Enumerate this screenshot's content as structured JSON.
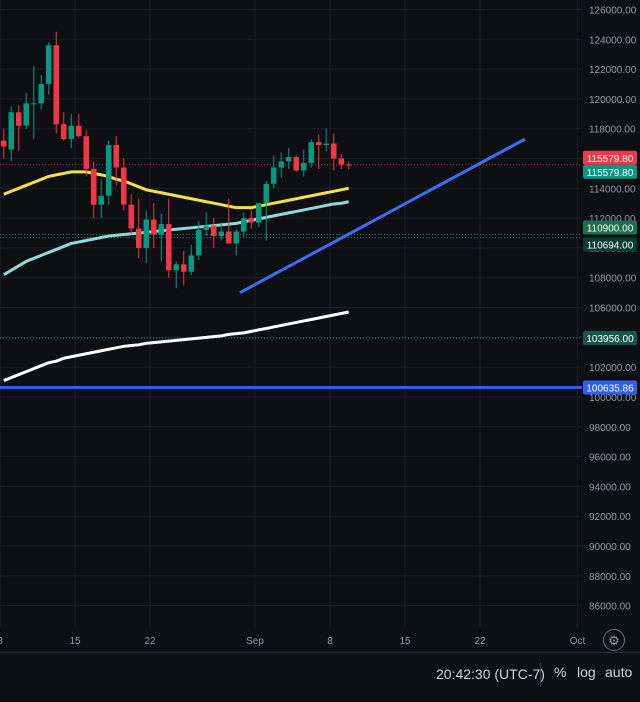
{
  "chart_data": {
    "type": "candlestick",
    "x_tick_labels": [
      "8",
      "15",
      "22",
      "Sep",
      "8",
      "15",
      "22",
      "Oct"
    ],
    "y_tick_labels": [
      "126000.00",
      "124000.00",
      "122000.00",
      "120000.00",
      "118000.00",
      "116000.00",
      "114000.00",
      "112000.00",
      "110000.00",
      "108000.00",
      "106000.00",
      "104000.00",
      "102000.00",
      "100000.00",
      "98000.00",
      "96000.00",
      "94000.00",
      "92000.00",
      "90000.00",
      "88000.00",
      "86000.00"
    ],
    "ylim": [
      84500,
      126500
    ],
    "candles": [
      {
        "o": 117200,
        "h": 118000,
        "l": 116000,
        "c": 116800
      },
      {
        "o": 116600,
        "h": 119500,
        "l": 115800,
        "c": 119100
      },
      {
        "o": 119100,
        "h": 119600,
        "l": 116500,
        "c": 118200
      },
      {
        "o": 118200,
        "h": 120400,
        "l": 118000,
        "c": 119700
      },
      {
        "o": 119700,
        "h": 122200,
        "l": 117300,
        "c": 119700
      },
      {
        "o": 119700,
        "h": 121600,
        "l": 119300,
        "c": 121000
      },
      {
        "o": 121000,
        "h": 123800,
        "l": 120300,
        "c": 123600
      },
      {
        "o": 123600,
        "h": 124500,
        "l": 117700,
        "c": 118300
      },
      {
        "o": 118300,
        "h": 119100,
        "l": 117200,
        "c": 117300
      },
      {
        "o": 117300,
        "h": 119000,
        "l": 116700,
        "c": 118200
      },
      {
        "o": 118200,
        "h": 119000,
        "l": 117400,
        "c": 117500
      },
      {
        "o": 117500,
        "h": 117900,
        "l": 114800,
        "c": 115300
      },
      {
        "o": 115300,
        "h": 115800,
        "l": 112000,
        "c": 112900
      },
      {
        "o": 112900,
        "h": 114600,
        "l": 112000,
        "c": 113500
      },
      {
        "o": 113500,
        "h": 117200,
        "l": 112900,
        "c": 116900
      },
      {
        "o": 116900,
        "h": 117500,
        "l": 114200,
        "c": 115400
      },
      {
        "o": 115400,
        "h": 116000,
        "l": 112500,
        "c": 112900
      },
      {
        "o": 112900,
        "h": 113600,
        "l": 110900,
        "c": 111300
      },
      {
        "o": 111300,
        "h": 113300,
        "l": 109300,
        "c": 110000
      },
      {
        "o": 110000,
        "h": 112500,
        "l": 109000,
        "c": 111900
      },
      {
        "o": 111900,
        "h": 113000,
        "l": 110000,
        "c": 110900
      },
      {
        "o": 110900,
        "h": 112300,
        "l": 109100,
        "c": 111600
      },
      {
        "o": 111600,
        "h": 113300,
        "l": 108000,
        "c": 108500
      },
      {
        "o": 108500,
        "h": 109100,
        "l": 107300,
        "c": 108900
      },
      {
        "o": 108900,
        "h": 109800,
        "l": 107500,
        "c": 108400
      },
      {
        "o": 108400,
        "h": 110200,
        "l": 108200,
        "c": 109500
      },
      {
        "o": 109500,
        "h": 111800,
        "l": 109200,
        "c": 111200
      },
      {
        "o": 111200,
        "h": 112400,
        "l": 110800,
        "c": 111500
      },
      {
        "o": 111500,
        "h": 112000,
        "l": 110000,
        "c": 110800
      },
      {
        "o": 110800,
        "h": 111600,
        "l": 110500,
        "c": 111100
      },
      {
        "o": 111100,
        "h": 113300,
        "l": 110300,
        "c": 110300
      },
      {
        "o": 110300,
        "h": 111300,
        "l": 109500,
        "c": 111100
      },
      {
        "o": 111100,
        "h": 112400,
        "l": 110700,
        "c": 112000
      },
      {
        "o": 112000,
        "h": 112600,
        "l": 111300,
        "c": 111700
      },
      {
        "o": 111700,
        "h": 113000,
        "l": 111400,
        "c": 113000
      },
      {
        "o": 113000,
        "h": 114500,
        "l": 110500,
        "c": 114300
      },
      {
        "o": 114300,
        "h": 116200,
        "l": 114000,
        "c": 115400
      },
      {
        "o": 115400,
        "h": 116400,
        "l": 114700,
        "c": 115800
      },
      {
        "o": 115800,
        "h": 116700,
        "l": 115300,
        "c": 116100
      },
      {
        "o": 116100,
        "h": 116200,
        "l": 115100,
        "c": 115200
      },
      {
        "o": 115200,
        "h": 116600,
        "l": 114800,
        "c": 115700
      },
      {
        "o": 115700,
        "h": 117300,
        "l": 115400,
        "c": 117100
      },
      {
        "o": 117100,
        "h": 117600,
        "l": 115300,
        "c": 116900
      },
      {
        "o": 116900,
        "h": 118000,
        "l": 116500,
        "c": 117000
      },
      {
        "o": 117000,
        "h": 117700,
        "l": 115200,
        "c": 116000
      },
      {
        "o": 116000,
        "h": 116300,
        "l": 115300,
        "c": 115600
      },
      {
        "o": 115600,
        "h": 115800,
        "l": 115300,
        "c": 115580
      }
    ],
    "moving_averages": [
      {
        "color": "#f2e14a",
        "values": [
          113600,
          113800,
          114000,
          114200,
          114400,
          114600,
          114800,
          114900,
          115000,
          115100,
          115100,
          115100,
          115000,
          114900,
          114800,
          114600,
          114500,
          114300,
          114100,
          113900,
          113800,
          113700,
          113600,
          113500,
          113400,
          113300,
          113200,
          113100,
          113000,
          112900,
          112800,
          112700,
          112700,
          112700,
          112800,
          112900,
          113000,
          113100,
          113200,
          113300,
          113400,
          113500,
          113600,
          113700,
          113800,
          113900,
          114000
        ]
      },
      {
        "color": "#8fd9d9",
        "values": [
          108200,
          108500,
          108800,
          109100,
          109300,
          109500,
          109700,
          109900,
          110100,
          110300,
          110400,
          110500,
          110600,
          110700,
          110800,
          110850,
          110900,
          110950,
          111000,
          111050,
          111100,
          111150,
          111200,
          111250,
          111300,
          111350,
          111400,
          111450,
          111500,
          111550,
          111600,
          111650,
          111750,
          111850,
          111950,
          112050,
          112150,
          112250,
          112350,
          112450,
          112550,
          112650,
          112750,
          112850,
          112950,
          113000,
          113100
        ]
      },
      {
        "color": "#ffffff",
        "values": [
          101100,
          101300,
          101500,
          101700,
          101900,
          102100,
          102300,
          102400,
          102600,
          102700,
          102800,
          102900,
          103000,
          103100,
          103200,
          103300,
          103400,
          103450,
          103500,
          103600,
          103650,
          103700,
          103750,
          103800,
          103850,
          103900,
          103950,
          104000,
          104050,
          104100,
          104200,
          104250,
          104300,
          104400,
          104500,
          104600,
          104700,
          104800,
          104900,
          105000,
          105100,
          105200,
          105300,
          105400,
          105500,
          105600,
          105700
        ]
      }
    ],
    "trendline": {
      "color": "#3d6df2",
      "from": {
        "index": 32,
        "y": 107000
      },
      "to": {
        "index": 70,
        "y": 117300
      }
    },
    "horizontal_line": {
      "value": 100635.86,
      "color": "#2f5ef0"
    },
    "price_labels": [
      {
        "label": "115579.80",
        "value": 115579.8,
        "bg": "#f23645",
        "fg": "#ffffff",
        "offset": -7
      },
      {
        "label": "115579.80",
        "value": 115579.8,
        "bg": "#089981",
        "fg": "#ffffff",
        "offset": 7
      },
      {
        "label": "110900.00",
        "value": 110900,
        "bg": "#1f6e4f",
        "fg": "#ffffff",
        "offset": -7
      },
      {
        "label": "110694.00",
        "value": 110694,
        "bg": "#0b3d2e",
        "fg": "#ffffff",
        "offset": 7
      },
      {
        "label": "103956.00",
        "value": 103956,
        "bg": "#17564a",
        "fg": "#ffffff",
        "offset": 0
      },
      {
        "label": "100635.86",
        "value": 100635.86,
        "bg": "#2f5ef0",
        "fg": "#ffffff",
        "offset": 0
      }
    ],
    "dotted_levels": [
      {
        "value": 115579.8,
        "color": "#f23645"
      },
      {
        "value": 110900,
        "color": "#26a69a"
      },
      {
        "value": 110694,
        "color": "#26a69a"
      },
      {
        "value": 103956,
        "color": "#26a69a"
      }
    ],
    "colors": {
      "up": "#089981",
      "down": "#f23645",
      "grid": "#1c1f26",
      "axis_text": "#9598a1"
    }
  },
  "status_bar": {
    "time": "20:42:30 (UTC-7)",
    "percent_label": "%",
    "log_label": "log",
    "auto_label": "auto"
  },
  "settings_icon": "gear-icon",
  "settings_glyph": "⚙"
}
